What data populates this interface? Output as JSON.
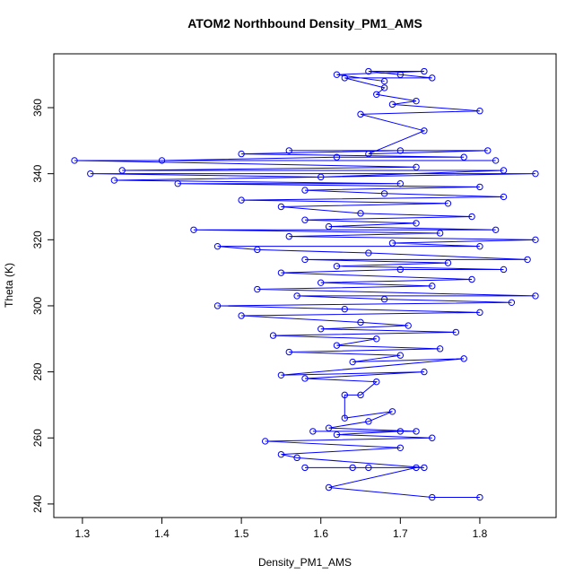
{
  "chart_data": {
    "type": "scatter",
    "title": "ATOM2 Northbound Density_PM1_AMS",
    "x_label": "Density_PM1_AMS",
    "y_label": "Theta (K)",
    "color": "#0000ff",
    "connect": true,
    "x": [
      1.8,
      1.74,
      1.61,
      1.72,
      1.64,
      1.58,
      1.66,
      1.73,
      1.57,
      1.55,
      1.7,
      1.53,
      1.74,
      1.62,
      1.7,
      1.59,
      1.72,
      1.61,
      1.66,
      1.69,
      1.63,
      1.63,
      1.65,
      1.67,
      1.58,
      1.73,
      1.55,
      1.78,
      1.64,
      1.7,
      1.56,
      1.75,
      1.62,
      1.67,
      1.54,
      1.77,
      1.6,
      1.71,
      1.65,
      1.5,
      1.8,
      1.63,
      1.47,
      1.84,
      1.68,
      1.57,
      1.87,
      1.52,
      1.74,
      1.6,
      1.79,
      1.55,
      1.7,
      1.83,
      1.62,
      1.76,
      1.58,
      1.86,
      1.66,
      1.52,
      1.47,
      1.8,
      1.69,
      1.87,
      1.56,
      1.75,
      1.44,
      1.82,
      1.61,
      1.72,
      1.58,
      1.79,
      1.65,
      1.55,
      1.76,
      1.5,
      1.83,
      1.68,
      1.58,
      1.8,
      1.42,
      1.7,
      1.34,
      1.87,
      1.31,
      1.6,
      1.83,
      1.35,
      1.72,
      1.29,
      1.82,
      1.4,
      1.62,
      1.78,
      1.5,
      1.7,
      1.56,
      1.81,
      1.66,
      1.73,
      1.65,
      1.8,
      1.69,
      1.72,
      1.67,
      1.68,
      1.63,
      1.74,
      1.7,
      1.66,
      1.73,
      1.62,
      1.68
    ],
    "values": [
      242,
      242,
      245,
      251,
      251,
      251,
      251,
      251,
      254,
      255,
      257,
      259,
      260,
      261,
      262,
      262,
      262,
      263,
      265,
      268,
      266,
      273,
      273,
      277,
      278,
      280,
      279,
      284,
      283,
      285,
      286,
      287,
      288,
      290,
      291,
      292,
      293,
      294,
      295,
      297,
      298,
      299,
      300,
      301,
      302,
      303,
      303,
      305,
      306,
      307,
      308,
      310,
      311,
      311,
      312,
      313,
      314,
      314,
      316,
      317,
      318,
      318,
      319,
      320,
      321,
      322,
      323,
      323,
      324,
      325,
      326,
      327,
      328,
      330,
      331,
      332,
      333,
      334,
      335,
      336,
      337,
      337,
      338,
      340,
      340,
      339,
      341,
      341,
      342,
      344,
      344,
      344,
      345,
      345,
      346,
      347,
      347,
      347,
      346,
      353,
      358,
      359,
      361,
      362,
      364,
      366,
      369,
      369,
      370,
      371,
      371,
      370,
      368
    ],
    "xlim": [
      1.264,
      1.896
    ],
    "ylim": [
      235.9,
      376.3
    ],
    "xticks": [
      1.3,
      1.4,
      1.5,
      1.6,
      1.7,
      1.8
    ],
    "yticks": [
      240,
      260,
      280,
      300,
      320,
      340,
      360
    ]
  }
}
